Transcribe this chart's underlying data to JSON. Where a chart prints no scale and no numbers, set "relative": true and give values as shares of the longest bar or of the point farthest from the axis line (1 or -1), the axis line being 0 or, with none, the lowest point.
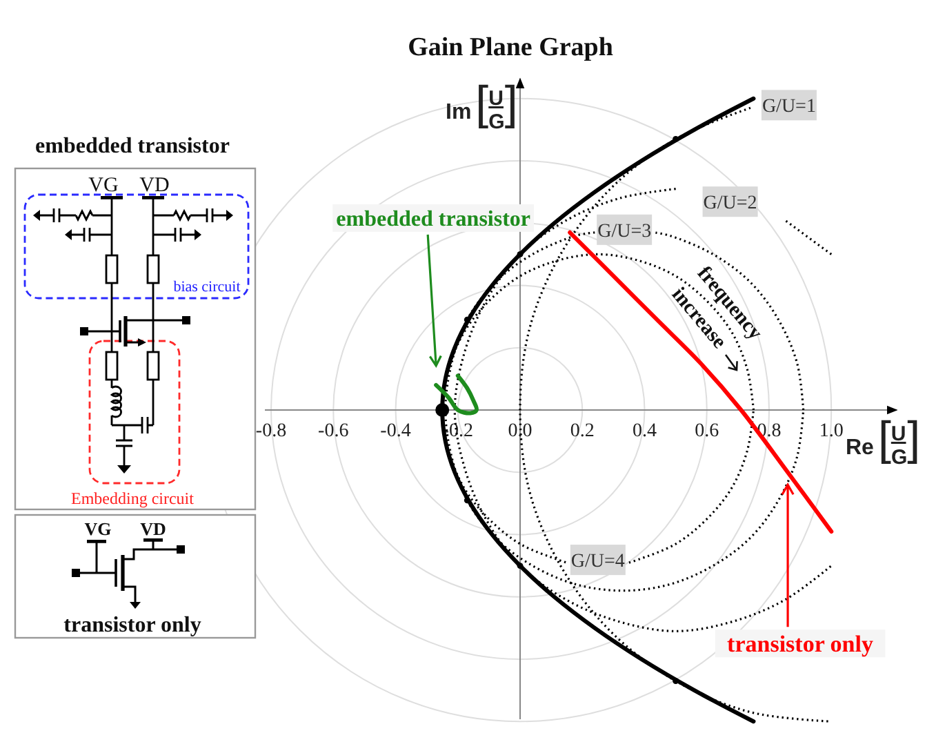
{
  "chart_data": {
    "type": "line",
    "title": "Gain Plane Graph",
    "xlabel": "Re[$^{U}$$_{G}$]",
    "ylabel": "Im[$^{U}$$_{G}$]",
    "relative": true,
    "xlim": [
      -0.82,
      1.21
    ],
    "xticks": [
      -0.8,
      -0.6,
      -0.4,
      -0.2,
      {
        "value": 0,
        "label": "0.0"
      },
      0.2,
      0.4,
      0.6,
      0.8,
      {
        "value": 1,
        "label": "1.0"
      }
    ],
    "grid": true,
    "series": [
      {
        "color": "#000000",
        "line_style": "solid",
        "x": [
          0.75,
          0.56,
          0.39,
          0.24,
          0.11,
          0.0,
          -0.09,
          -0.16,
          -0.21,
          -0.24,
          -0.25,
          -0.24,
          -0.21,
          -0.16,
          -0.09,
          0.0,
          0.11,
          0.24,
          0.39,
          0.56,
          0.75
        ],
        "values": [
          1.0,
          0.9,
          0.8,
          0.7,
          0.6,
          0.5,
          0.4,
          0.3,
          0.2,
          0.1,
          0,
          -0.1,
          -0.2,
          -0.3,
          -0.4,
          -0.5,
          -0.6,
          -0.7,
          -0.8,
          -0.9,
          -1.0
        ]
      },
      {
        "name": "G/U=1",
        "color": "#000000",
        "line_style": "dotted",
        "x": [
          0.74,
          0.5,
          0.29,
          0.13,
          0.03,
          0.0,
          0.03,
          0.13,
          0.29,
          0.5,
          0.74,
          1.0
        ],
        "values": [
          0.97,
          0.87,
          0.71,
          0.5,
          0.26,
          0,
          -0.26,
          -0.5,
          -0.71,
          -0.87,
          -0.97,
          -1.0
        ]
      },
      {
        "name": "G/U=2",
        "color": "#000000",
        "line_style": "dotted",
        "x": [
          1.0,
          0.85,
          0.68,
          0.5,
          0.32,
          0.15,
          0.0,
          -0.11,
          -0.18,
          -0.21,
          -0.18,
          -0.11,
          0.0,
          0.15,
          0.32,
          0.5,
          0.68,
          0.85,
          1.0
        ],
        "values": [
          0.5,
          0.61,
          null,
          0.71,
          0.68,
          0.61,
          0.5,
          0.35,
          0.18,
          0,
          -0.18,
          -0.35,
          -0.5,
          -0.61,
          -0.68,
          -0.71,
          -0.68,
          -0.61,
          -0.5
        ]
      },
      {
        "name": "G/U=3",
        "color": "#000000",
        "line_style": "dotted",
        "x": [
          0.91,
          0.89,
          0.83,
          0.74,
          0.62,
          0.48,
          0.43,
          0.33,
          0.24,
          0.18,
          0.04,
          -0.08,
          -0.17,
          -0.22,
          -0.24,
          -0.22,
          -0.17,
          -0.08,
          0.04,
          0.18,
          0.33,
          0.48,
          0.62,
          0.74,
          0.83,
          0.89,
          0.91
        ],
        "values": [
          0,
          0.15,
          0.29,
          0.41,
          0.5,
          0.56,
          0.57,
          null,
          0.57,
          0.56,
          0.5,
          0.41,
          0.29,
          0.15,
          0,
          -0.15,
          -0.29,
          -0.41,
          -0.5,
          -0.56,
          -0.58,
          -0.56,
          -0.5,
          -0.41,
          -0.29,
          -0.15,
          0
        ]
      },
      {
        "name": "G/U=4",
        "color": "#000000",
        "line_style": "dotted",
        "x": [
          0.75,
          0.73,
          0.68,
          0.6,
          0.5,
          0.38,
          0.25,
          0.12,
          0.0,
          -0.1,
          -0.18,
          -0.23,
          -0.25,
          -0.23,
          -0.18,
          -0.1,
          0.0,
          0.12,
          0.15,
          0.25,
          0.35,
          0.38,
          0.5,
          0.6,
          0.68,
          0.73,
          0.75
        ],
        "values": [
          0,
          0.13,
          0.25,
          0.35,
          0.43,
          0.48,
          0.5,
          0.48,
          0.43,
          0.35,
          0.25,
          0.13,
          0,
          -0.13,
          -0.25,
          -0.35,
          -0.43,
          -0.48,
          -0.49,
          null,
          -0.49,
          -0.48,
          -0.43,
          -0.35,
          -0.25,
          -0.13,
          0
        ]
      },
      {
        "name": "transistor only",
        "color": "#ff0000",
        "line_style": "solid",
        "x": [
          0.16,
          0.3,
          0.44,
          0.58,
          0.71,
          0.86,
          1.0
        ],
        "values": [
          0.57,
          0.43,
          0.29,
          0.15,
          0.0,
          -0.2,
          -0.39
        ]
      },
      {
        "name": "embedded transistor",
        "color": "#1e8c1e",
        "line_style": "solid",
        "x": [
          -0.27,
          -0.23,
          -0.2,
          -0.16,
          -0.14,
          -0.15,
          -0.17,
          -0.2
        ],
        "values": [
          0.08,
          0.04,
          0.0,
          -0.01,
          0.0,
          0.03,
          0.07,
          0.11
        ]
      },
      {
        "type": "bubble",
        "color": "#000000",
        "x": [
          -0.25,
          -0.17,
          0.0,
          0.5,
          -0.17,
          0.0,
          0.5
        ],
        "values": [
          0,
          0.29,
          0.5,
          0.87,
          -0.29,
          -0.5,
          -0.87
        ],
        "sizes": [
          1,
          0.2,
          0.2,
          0.2,
          0.2,
          0.2,
          0.2
        ]
      }
    ],
    "annotations": [
      "embedded transistor",
      "VG",
      "VD",
      "bias circuit",
      "Embedding circuit",
      "VG",
      "VD",
      "transistor only",
      "frequency increase"
    ]
  }
}
